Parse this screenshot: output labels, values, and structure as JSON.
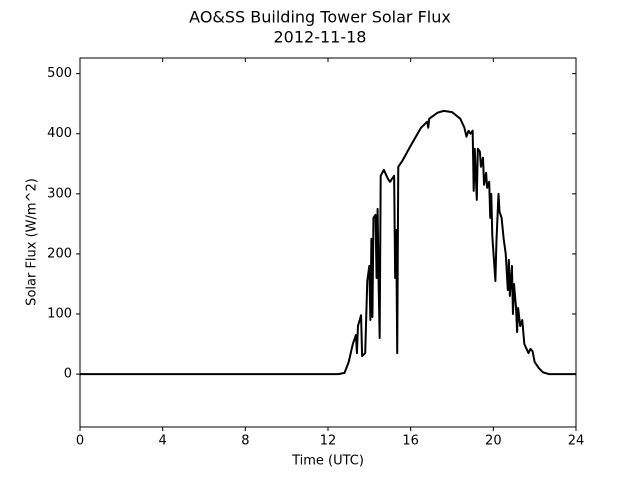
{
  "chart_data": {
    "type": "line",
    "title": "AO&SS Building Tower Solar Flux",
    "subtitle": "2012-11-18",
    "xlabel": "Time (UTC)",
    "ylabel": "Solar Flux (W/m^2)",
    "color": "#000000",
    "x": [
      0,
      12.5,
      12.8,
      13.0,
      13.2,
      13.35,
      13.4,
      13.45,
      13.6,
      13.65,
      13.8,
      13.9,
      14.0,
      14.05,
      14.1,
      14.15,
      14.2,
      14.3,
      14.35,
      14.4,
      14.45,
      14.5,
      14.55,
      14.7,
      14.9,
      15.0,
      15.2,
      15.25,
      15.3,
      15.35,
      15.4,
      15.6,
      16.0,
      16.5,
      16.8,
      16.85,
      16.9,
      17.3,
      17.6,
      18.0,
      18.4,
      18.6,
      18.7,
      18.8,
      18.9,
      19.0,
      19.05,
      19.1,
      19.2,
      19.25,
      19.35,
      19.4,
      19.5,
      19.55,
      19.65,
      19.7,
      19.8,
      19.85,
      19.9,
      19.95,
      20.1,
      20.15,
      20.25,
      20.3,
      20.4,
      20.5,
      20.6,
      20.7,
      20.75,
      20.8,
      20.9,
      20.95,
      21.0,
      21.1,
      21.15,
      21.2,
      21.3,
      21.4,
      21.5,
      21.7,
      21.8,
      21.9,
      22.0,
      22.2,
      22.4,
      22.7,
      24
    ],
    "values": [
      0,
      0,
      2,
      20,
      50,
      65,
      35,
      80,
      98,
      30,
      35,
      155,
      180,
      90,
      225,
      95,
      260,
      265,
      160,
      275,
      150,
      60,
      330,
      340,
      325,
      320,
      330,
      160,
      240,
      35,
      345,
      355,
      380,
      410,
      420,
      410,
      425,
      435,
      438,
      436,
      425,
      410,
      395,
      405,
      400,
      405,
      305,
      375,
      290,
      375,
      370,
      345,
      360,
      315,
      335,
      310,
      320,
      260,
      300,
      230,
      155,
      220,
      300,
      270,
      260,
      225,
      200,
      140,
      190,
      130,
      180,
      100,
      150,
      110,
      70,
      110,
      80,
      90,
      50,
      35,
      42,
      38,
      20,
      10,
      3,
      0,
      0
    ],
    "xlim": [
      0,
      24
    ],
    "xticks": [
      0,
      4,
      8,
      12,
      16,
      20,
      24
    ],
    "ylim": [
      -88,
      526
    ],
    "yticks": [
      0,
      100,
      200,
      300,
      400,
      500
    ]
  }
}
